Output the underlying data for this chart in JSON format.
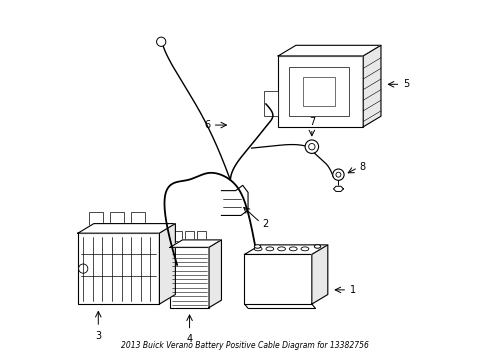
{
  "title": "2013 Buick Verano Battery Positive Cable Diagram for 13382756",
  "background_color": "#ffffff",
  "line_color": "#000000",
  "label_color": "#000000",
  "fig_width": 4.89,
  "fig_height": 3.6,
  "dpi": 100
}
